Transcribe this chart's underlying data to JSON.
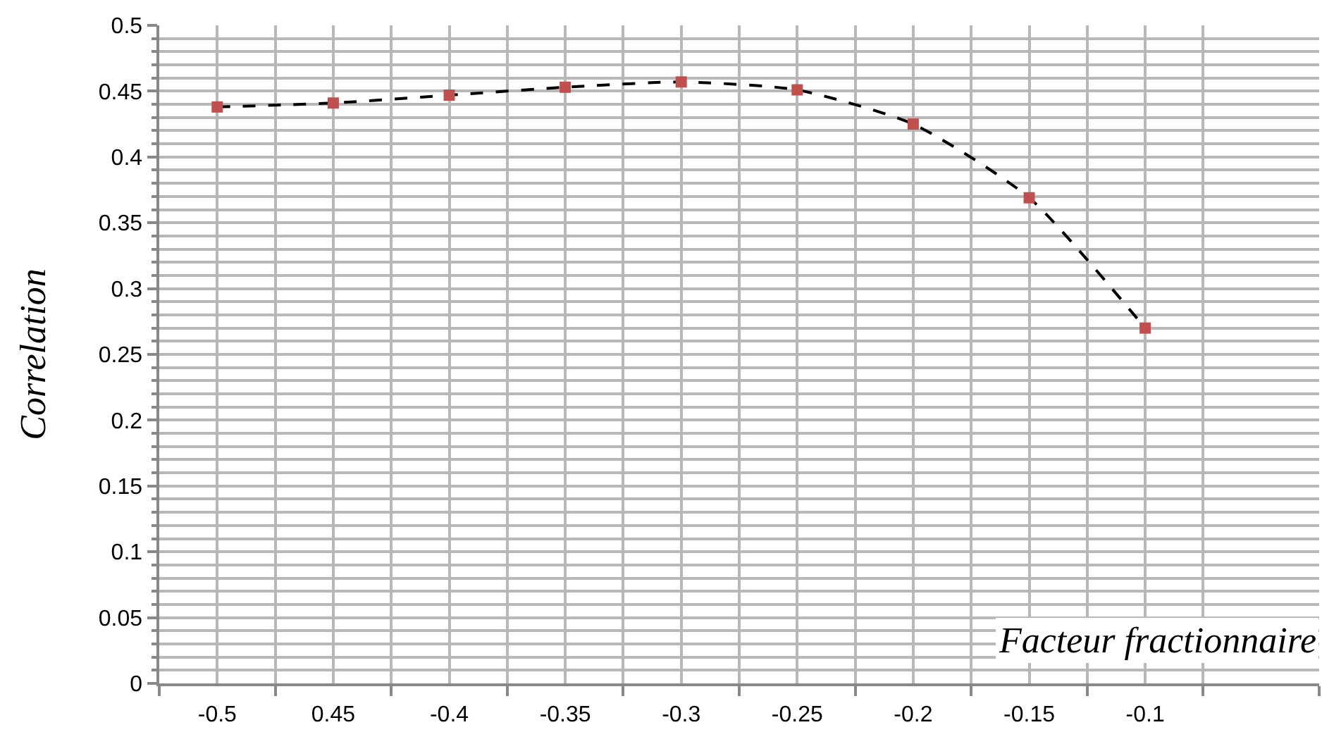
{
  "chart_data": {
    "type": "line",
    "xlabel": "Facteur fractionnaire",
    "ylabel": "Correlation",
    "categories": [
      "-0.5",
      "0.45",
      "-0.4",
      "-0.35",
      "-0.3",
      "-0.25",
      "-0.2",
      "-0.15",
      "-0.1",
      null
    ],
    "series": [
      {
        "color": "#c0504d",
        "values": [
          0.438,
          0.441,
          0.447,
          0.453,
          0.457,
          0.451,
          0.425,
          0.369,
          0.27,
          null
        ]
      }
    ],
    "ylim": [
      0,
      0.5
    ],
    "yticks": [
      0,
      0.05,
      0.1,
      0.15,
      0.2,
      0.25,
      0.3,
      0.35,
      0.4,
      0.45,
      0.5
    ],
    "grid": true,
    "marker": "square",
    "line_style": "dashed"
  }
}
